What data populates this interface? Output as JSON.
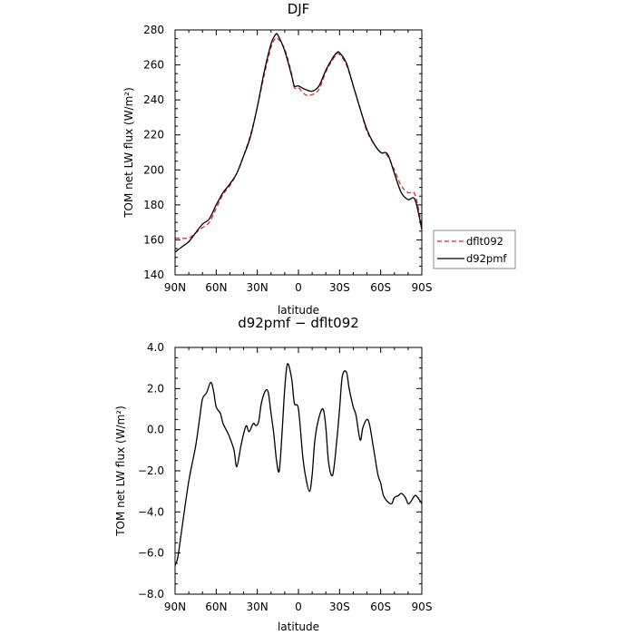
{
  "chart_data": [
    {
      "type": "line",
      "title": "DJF",
      "xlabel": "latitude",
      "ylabel": "TOM net LW flux (W/m²)",
      "xlim": [
        -90,
        90
      ],
      "ylim": [
        140,
        280
      ],
      "x_ticks": [
        -90,
        -60,
        -30,
        0,
        30,
        60,
        90
      ],
      "x_tick_labels": [
        "90N",
        "60N",
        "30N",
        "0",
        "30S",
        "60S",
        "90S"
      ],
      "y_ticks": [
        140,
        160,
        180,
        200,
        220,
        240,
        260,
        280
      ],
      "y_tick_labels": [
        "140",
        "160",
        "180",
        "200",
        "220",
        "240",
        "260",
        "280"
      ],
      "legend": "right",
      "series": [
        {
          "name": "dflt092",
          "color": "#e8262c",
          "dash": "dashed",
          "x": [
            -90,
            -85,
            -80,
            -75,
            -70,
            -65,
            -60,
            -55,
            -50,
            -45,
            -40,
            -35,
            -30,
            -25,
            -20,
            -17,
            -15,
            -10,
            -5,
            -3,
            0,
            5,
            10,
            15,
            20,
            25,
            28,
            30,
            35,
            40,
            45,
            50,
            55,
            60,
            65,
            70,
            75,
            80,
            85,
            90
          ],
          "y": [
            161,
            161,
            161,
            164,
            167,
            170,
            178,
            186,
            191,
            198,
            208,
            220,
            236,
            254,
            270,
            275,
            275,
            269,
            255,
            247,
            247,
            243,
            243,
            246,
            256,
            263,
            266,
            266,
            260,
            248,
            235,
            222,
            215,
            210,
            208,
            200,
            191,
            187,
            186,
            168
          ]
        },
        {
          "name": "d92pmf",
          "color": "#000000",
          "dash": "solid",
          "x": [
            -90,
            -85,
            -80,
            -75,
            -70,
            -65,
            -60,
            -55,
            -50,
            -45,
            -40,
            -35,
            -30,
            -25,
            -20,
            -17,
            -15,
            -10,
            -5,
            -3,
            0,
            5,
            10,
            15,
            20,
            25,
            28,
            30,
            35,
            40,
            45,
            50,
            55,
            60,
            65,
            70,
            75,
            80,
            85,
            90
          ],
          "y": [
            153,
            156,
            159,
            164,
            169,
            172,
            180,
            187,
            192,
            198,
            208,
            219,
            236,
            256,
            272,
            277,
            277,
            268,
            254,
            248,
            248,
            246,
            245,
            248,
            257,
            264,
            267,
            267,
            261,
            248,
            235,
            223,
            215,
            210,
            209,
            198,
            187,
            183,
            183,
            166
          ]
        }
      ]
    },
    {
      "type": "line",
      "title": "d92pmf − dflt092",
      "xlabel": "latitude",
      "ylabel": "TOM net LW flux (W/m²)",
      "xlim": [
        -90,
        90
      ],
      "ylim": [
        -8,
        4
      ],
      "x_ticks": [
        -90,
        -60,
        -30,
        0,
        30,
        60,
        90
      ],
      "x_tick_labels": [
        "90N",
        "60N",
        "30N",
        "0",
        "30S",
        "60S",
        "90S"
      ],
      "y_ticks": [
        -8,
        -6,
        -4,
        -2,
        0,
        2,
        4
      ],
      "y_tick_labels": [
        "−8.0",
        "−6.0",
        "−4.0",
        "−2.0",
        "0.0",
        "2.0",
        "4.0"
      ],
      "series": [
        {
          "color": "#000000",
          "dash": "solid",
          "x": [
            -90,
            -88,
            -85,
            -80,
            -75,
            -72,
            -70,
            -67,
            -64,
            -62,
            -60,
            -57,
            -55,
            -52,
            -50,
            -47,
            -45,
            -42,
            -40,
            -38,
            -36,
            -33,
            -31,
            -29,
            -27,
            -24,
            -22,
            -20,
            -18,
            -16,
            -14,
            -12,
            -10,
            -8,
            -5,
            -3,
            0,
            3,
            5,
            8,
            10,
            12,
            15,
            18,
            20,
            22,
            25,
            28,
            30,
            32,
            35,
            37,
            40,
            42,
            45,
            47,
            50,
            52,
            55,
            58,
            60,
            62,
            65,
            68,
            70,
            73,
            75,
            78,
            80,
            82,
            85,
            87,
            90
          ],
          "y": [
            -6.6,
            -6.2,
            -4.8,
            -2.5,
            -0.8,
            0.6,
            1.5,
            1.8,
            2.3,
            1.9,
            1.1,
            0.8,
            0.3,
            -0.1,
            -0.4,
            -1.0,
            -1.8,
            -0.8,
            -0.2,
            0.2,
            -0.1,
            0.3,
            0.2,
            0.4,
            1.3,
            1.9,
            1.8,
            0.8,
            -0.2,
            -1.5,
            -2.0,
            -0.2,
            2.0,
            3.2,
            2.5,
            1.3,
            1.0,
            -1.2,
            -2.2,
            -3.0,
            -2.2,
            -0.5,
            0.6,
            1.0,
            0.1,
            -1.6,
            -2.2,
            -0.5,
            1.0,
            2.6,
            2.8,
            2.0,
            1.1,
            0.7,
            -0.5,
            0.1,
            0.5,
            0.2,
            -1.0,
            -2.2,
            -2.6,
            -3.2,
            -3.5,
            -3.6,
            -3.3,
            -3.2,
            -3.1,
            -3.3,
            -3.6,
            -3.5,
            -3.2,
            -3.3,
            -3.6
          ]
        }
      ]
    }
  ]
}
